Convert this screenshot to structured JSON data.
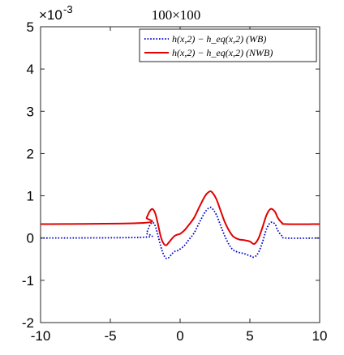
{
  "chart_data": {
    "type": "line",
    "title": "100×100",
    "xlabel": "",
    "ylabel": "",
    "xlim": [
      -10,
      10
    ],
    "ylim": [
      -2,
      5
    ],
    "y_multiplier": "×10",
    "y_multiplier_exp": "-3",
    "xticks": [
      -10,
      -5,
      0,
      5,
      10
    ],
    "yticks": [
      -2,
      -1,
      0,
      1,
      2,
      3,
      4,
      5
    ],
    "xtick_labels": [
      "-10",
      "-5",
      "0",
      "5",
      "10"
    ],
    "ytick_labels": [
      "-2",
      "-1",
      "0",
      "1",
      "2",
      "3",
      "4",
      "5"
    ],
    "grid": false,
    "legend_position": "top-right",
    "series": [
      {
        "name": "h(x,2) − h_eq(x,2) (WB)",
        "color": "#0000cc",
        "style": "dotted",
        "x": [
          -10,
          -2.6,
          -2.4,
          -2.2,
          -2.0,
          -1.8,
          -1.6,
          -1.4,
          -1.2,
          -1.0,
          -0.8,
          -0.6,
          -0.4,
          -0.2,
          0.0,
          0.3,
          0.6,
          1.0,
          1.4,
          1.8,
          2.1,
          2.3,
          2.6,
          2.9,
          3.2,
          3.5,
          3.8,
          4.2,
          4.6,
          5.0,
          5.3,
          5.6,
          5.9,
          6.2,
          6.5,
          6.8,
          7.0,
          7.3,
          7.6,
          10
        ],
        "y": [
          0.0,
          0.02,
          0.12,
          0.28,
          0.37,
          0.3,
          0.08,
          -0.18,
          -0.38,
          -0.48,
          -0.46,
          -0.38,
          -0.32,
          -0.3,
          -0.26,
          -0.18,
          -0.05,
          0.12,
          0.38,
          0.62,
          0.72,
          0.7,
          0.55,
          0.3,
          0.05,
          -0.15,
          -0.28,
          -0.34,
          -0.37,
          -0.42,
          -0.45,
          -0.35,
          -0.1,
          0.22,
          0.37,
          0.33,
          0.18,
          0.05,
          0.0,
          0.0
        ]
      },
      {
        "name": "h(x,2) − h_eq(x,2) (NWB)",
        "color": "#e00000",
        "style": "solid",
        "x": [
          -10,
          -2.6,
          -2.4,
          -2.2,
          -2.0,
          -1.8,
          -1.6,
          -1.4,
          -1.2,
          -1.0,
          -0.8,
          -0.6,
          -0.4,
          -0.2,
          0.0,
          0.3,
          0.6,
          1.0,
          1.4,
          1.8,
          2.1,
          2.3,
          2.6,
          2.9,
          3.2,
          3.5,
          3.8,
          4.2,
          4.6,
          5.0,
          5.3,
          5.6,
          5.9,
          6.2,
          6.5,
          6.8,
          7.0,
          7.3,
          7.6,
          10
        ],
        "y": [
          0.33,
          0.36,
          0.48,
          0.62,
          0.69,
          0.6,
          0.35,
          0.05,
          -0.12,
          -0.17,
          -0.1,
          -0.02,
          0.05,
          0.08,
          0.1,
          0.18,
          0.3,
          0.48,
          0.75,
          1.0,
          1.1,
          1.08,
          0.92,
          0.65,
          0.38,
          0.18,
          0.04,
          -0.03,
          -0.05,
          -0.08,
          -0.14,
          -0.02,
          0.25,
          0.55,
          0.69,
          0.62,
          0.48,
          0.36,
          0.33,
          0.33
        ]
      }
    ]
  }
}
